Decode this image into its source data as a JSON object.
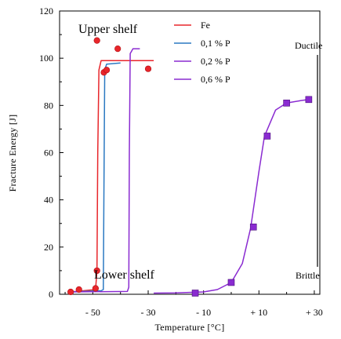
{
  "chart_data": {
    "type": "line",
    "xlabel": "Temperature [°C]",
    "ylabel": "Fracture Energy [J]",
    "xlim": [
      -62,
      32
    ],
    "ylim": [
      0,
      120
    ],
    "x_ticks": [
      -50,
      -30,
      -10,
      10,
      30
    ],
    "x_tick_labels": [
      "- 50",
      "- 30",
      "- 10",
      "+ 10",
      "+ 30"
    ],
    "y_ticks": [
      0,
      20,
      40,
      60,
      80,
      100,
      120
    ],
    "y_tick_labels": [
      "0",
      "20",
      "40",
      "60",
      "80",
      "100",
      "120"
    ],
    "legend_position": "top-right",
    "annotations": {
      "upper_shelf": "Upper shelf",
      "lower_shelf": "Lower shelf",
      "ductile": "Ductile",
      "brittle": "Brittle"
    },
    "series": [
      {
        "name": "Fe",
        "color": "#e8262b",
        "line": [
          [
            -58,
            1
          ],
          [
            -49,
            2
          ],
          [
            -48.5,
            10
          ],
          [
            -48.2,
            60
          ],
          [
            -47.8,
            95
          ],
          [
            -47,
            99
          ],
          [
            -44,
            99
          ],
          [
            -28,
            99
          ]
        ],
        "markers": "circle",
        "points": [
          [
            -58,
            1
          ],
          [
            -55,
            2
          ],
          [
            -49,
            2.5
          ],
          [
            -48.5,
            10
          ],
          [
            -48.5,
            107.5
          ],
          [
            -46,
            94
          ],
          [
            -45,
            95
          ],
          [
            -41,
            104
          ],
          [
            -30,
            95.5
          ]
        ]
      },
      {
        "name": "0,1 % P",
        "color": "#2b79c2",
        "line": [
          [
            -58,
            1
          ],
          [
            -47,
            1.5
          ],
          [
            -46.2,
            2
          ],
          [
            -46,
            40
          ],
          [
            -45.7,
            95
          ],
          [
            -45,
            97.5
          ],
          [
            -40,
            98
          ]
        ],
        "markers": "none",
        "points": []
      },
      {
        "name": "0,2 % P",
        "color": "#8a2bd1",
        "line": [
          [
            -58,
            1
          ],
          [
            -37.5,
            1.2
          ],
          [
            -37,
            3
          ],
          [
            -36.8,
            60
          ],
          [
            -36.5,
            102
          ],
          [
            -35.5,
            104
          ],
          [
            -33,
            104
          ]
        ],
        "markers": "none",
        "points": []
      },
      {
        "name": "0,6 % P",
        "color": "#8a2bd1",
        "line": [
          [
            -28,
            0.5
          ],
          [
            -20,
            0.6
          ],
          [
            -10,
            1
          ],
          [
            -5,
            2
          ],
          [
            0,
            5
          ],
          [
            4,
            13
          ],
          [
            7,
            28
          ],
          [
            10,
            52
          ],
          [
            12,
            67
          ],
          [
            16,
            78
          ],
          [
            20,
            81
          ],
          [
            25,
            82
          ],
          [
            28,
            82.5
          ]
        ],
        "markers": "square",
        "points": [
          [
            -13,
            0.5
          ],
          [
            0,
            5
          ],
          [
            8,
            28.5
          ],
          [
            13,
            67
          ],
          [
            20,
            81
          ],
          [
            28,
            82.5
          ]
        ]
      }
    ]
  }
}
